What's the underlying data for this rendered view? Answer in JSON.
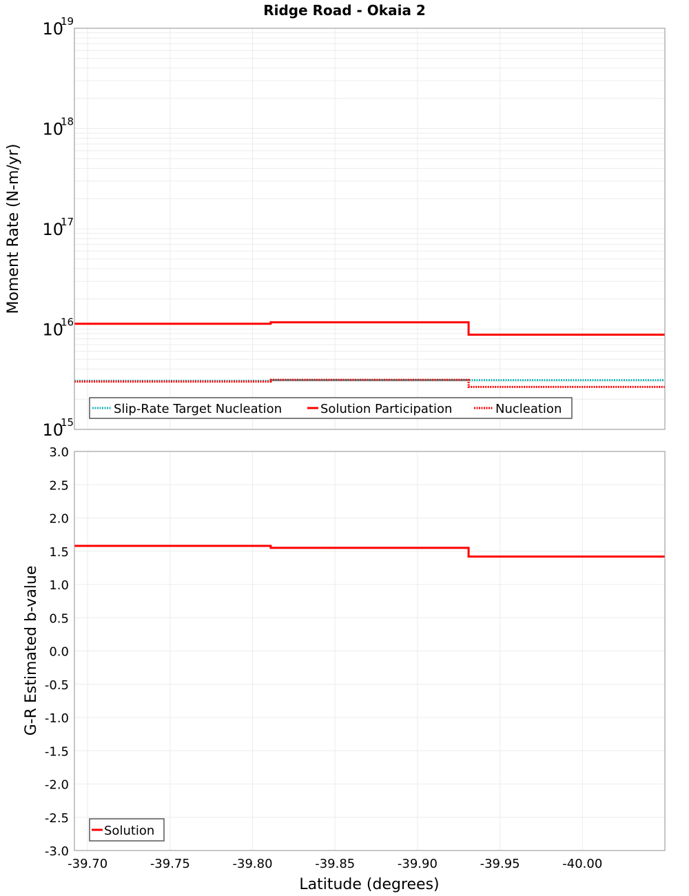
{
  "title": "Ridge Road - Okaia 2",
  "chart_data": [
    {
      "type": "line",
      "subtype": "step",
      "title": "Ridge Road - Okaia 2",
      "xlabel": "Latitude (degrees)",
      "ylabel": "Moment Rate (N-m/yr)",
      "yscale": "log",
      "xlim": [
        -39.692,
        -40.05
      ],
      "ylim": [
        1000000000000000.0,
        1e+19
      ],
      "y_ticks": [
        {
          "base": "10",
          "exp": "15",
          "value": 1000000000000000.0
        },
        {
          "base": "10",
          "exp": "16",
          "value": 1e+16
        },
        {
          "base": "10",
          "exp": "17",
          "value": 1e+17
        },
        {
          "base": "10",
          "exp": "18",
          "value": 1e+18
        },
        {
          "base": "10",
          "exp": "19",
          "value": 1e+19
        }
      ],
      "grid": true,
      "legend_position": "lower-left",
      "series": [
        {
          "name": "Slip-Rate Target Nucleation",
          "color": "#1fb5b5",
          "style": "dotted",
          "segments": [
            {
              "x0": -39.692,
              "x1": -39.811,
              "y": 3050000000000000.0
            },
            {
              "x0": -39.811,
              "x1": -39.931,
              "y": 3100000000000000.0
            },
            {
              "x0": -39.931,
              "x1": -40.05,
              "y": 3100000000000000.0
            }
          ]
        },
        {
          "name": "Solution Participation",
          "color": "#ff0000",
          "style": "solid",
          "segments": [
            {
              "x0": -39.692,
              "x1": -39.811,
              "y": 1.13e+16
            },
            {
              "x0": -39.811,
              "x1": -39.931,
              "y": 1.17e+16
            },
            {
              "x0": -39.931,
              "x1": -40.05,
              "y": 8800000000000000.0
            }
          ]
        },
        {
          "name": "Nucleation",
          "color": "#ff0000",
          "style": "dotted",
          "segments": [
            {
              "x0": -39.692,
              "x1": -39.811,
              "y": 3000000000000000.0
            },
            {
              "x0": -39.811,
              "x1": -39.931,
              "y": 3120000000000000.0
            },
            {
              "x0": -39.931,
              "x1": -40.05,
              "y": 2650000000000000.0
            }
          ]
        }
      ]
    },
    {
      "type": "line",
      "subtype": "step",
      "xlabel": "Latitude (degrees)",
      "ylabel": "G-R Estimated b-value",
      "xlim": [
        -39.692,
        -40.05
      ],
      "ylim": [
        -3.0,
        3.0
      ],
      "x_ticks": [
        "-39.70",
        "-39.75",
        "-39.80",
        "-39.85",
        "-39.90",
        "-39.95",
        "-40.00"
      ],
      "x_tick_values": [
        -39.7,
        -39.75,
        -39.8,
        -39.85,
        -39.9,
        -39.95,
        -40.0
      ],
      "y_ticks": [
        "3.0",
        "2.5",
        "2.0",
        "1.5",
        "1.0",
        "0.5",
        "0.0",
        "-0.5",
        "-1.0",
        "-1.5",
        "-2.0",
        "-2.5",
        "-3.0"
      ],
      "y_tick_values": [
        3.0,
        2.5,
        2.0,
        1.5,
        1.0,
        0.5,
        0.0,
        -0.5,
        -1.0,
        -1.5,
        -2.0,
        -2.5,
        -3.0
      ],
      "grid": true,
      "legend_position": "lower-left",
      "series": [
        {
          "name": "Solution",
          "color": "#ff0000",
          "style": "solid",
          "segments": [
            {
              "x0": -39.692,
              "x1": -39.811,
              "y": 1.58
            },
            {
              "x0": -39.811,
              "x1": -39.931,
              "y": 1.55
            },
            {
              "x0": -39.931,
              "x1": -40.05,
              "y": 1.42
            }
          ]
        }
      ]
    }
  ]
}
